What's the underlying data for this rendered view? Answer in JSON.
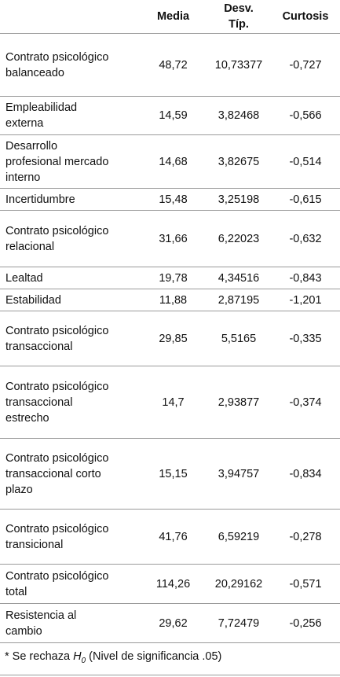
{
  "table": {
    "header": [
      "Media",
      "Desv. Típ.",
      "Curtosis"
    ],
    "rows": [
      [
        "Contrato psicológico balanceado",
        "48,72",
        "10,73377",
        "-0,727"
      ],
      [
        "Empleabilidad externa",
        "14,59",
        "3,82468",
        "-0,566"
      ],
      [
        "Desarrollo profesional mercado interno",
        "14,68",
        "3,82675",
        "-0,514"
      ],
      [
        "Incertidumbre",
        "15,48",
        "3,25198",
        "-0,615"
      ],
      [
        "Contrato psicológico relacional",
        "31,66",
        "6,22023",
        "-0,632"
      ],
      [
        "Lealtad",
        "19,78",
        "4,34516",
        "-0,843"
      ],
      [
        "Estabilidad",
        "11,88",
        "2,87195",
        "-1,201"
      ],
      [
        "Contrato psicológico transaccional",
        "29,85",
        "5,5165",
        "-0,335"
      ],
      [
        "Contrato psicológico transaccional estrecho",
        "14,7",
        "2,93877",
        "-0,374"
      ],
      [
        "Contrato psicológico transaccional corto plazo",
        "15,15",
        "3,94757",
        "-0,834"
      ],
      [
        "Contrato psicológico transicional",
        "41,76",
        "6,59219",
        "-0,278"
      ],
      [
        "Contrato psicológico total",
        "114,26",
        "20,29162",
        "-0,571"
      ],
      [
        "Resistencia al cambio",
        "29,62",
        "7,72479",
        "-0,256"
      ]
    ],
    "footnote": {
      "prefix": "* Se rechaza ",
      "symbol": "H",
      "subscript": "0",
      "suffix": " (Nivel de significancia .05)"
    }
  }
}
